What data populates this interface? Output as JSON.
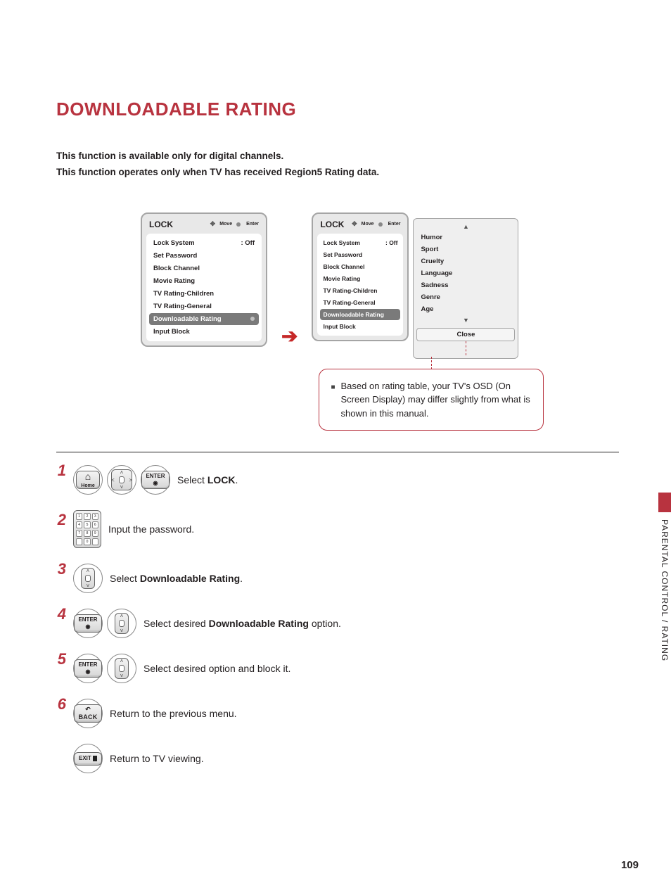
{
  "title": "DOWNLOADABLE RATING",
  "intro_l1": "This function is available only for digital channels.",
  "intro_l2": "This function operates only when TV has received Region5 Rating data.",
  "menu_header": "LOCK",
  "menu_header_move": "Move",
  "menu_header_enter": "Enter",
  "arrow_glyph": "➔",
  "lock_menu": {
    "items": [
      {
        "label": "Lock System",
        "val": ": Off",
        "sel": false
      },
      {
        "label": "Set Password",
        "val": "",
        "sel": false
      },
      {
        "label": "Block Channel",
        "val": "",
        "sel": false
      },
      {
        "label": "Movie Rating",
        "val": "",
        "sel": false
      },
      {
        "label": "TV Rating-Children",
        "val": "",
        "sel": false
      },
      {
        "label": "TV Rating-General",
        "val": "",
        "sel": false
      },
      {
        "label": "Downloadable Rating",
        "val": "",
        "sel": true
      },
      {
        "label": "Input Block",
        "val": "",
        "sel": false
      }
    ]
  },
  "submenu": {
    "items": [
      "Humor",
      "Sport",
      "Cruelty",
      "Language",
      "Sadness",
      "Genre",
      "Age"
    ],
    "up": "▲",
    "down": "▼",
    "close": "Close"
  },
  "note": "Based on rating table, your TV's OSD (On Screen Display) may differ slightly from what is shown in this manual.",
  "step1_num": "1",
  "step1_a": "Select ",
  "step1_b": "LOCK",
  "step1_c": ".",
  "step2_num": "2",
  "step2": "Input the password.",
  "step3_num": "3",
  "step3_a": "Select ",
  "step3_b": "Downloadable Rating",
  "step3_c": ".",
  "step4_num": "4",
  "step4_a": "Select desired ",
  "step4_b": "Downloadable Rating",
  "step4_c": " option.",
  "step5_num": "5",
  "step5": "Select desired option and block it.",
  "step6_num": "6",
  "step6": "Return to the previous menu.",
  "step_exit": "Return to TV viewing.",
  "btn_home": "Home",
  "btn_enter": "ENTER",
  "btn_back": "BACK",
  "btn_exit": "EXIT",
  "side_label": "PARENTAL CONTROL / RATING",
  "page_num": "109",
  "colors": {
    "accent": "#b8333f",
    "panel_bg": "#e8e8e8",
    "panel_border": "#a5a5a5",
    "sel_bg": "#7a7a7a"
  }
}
